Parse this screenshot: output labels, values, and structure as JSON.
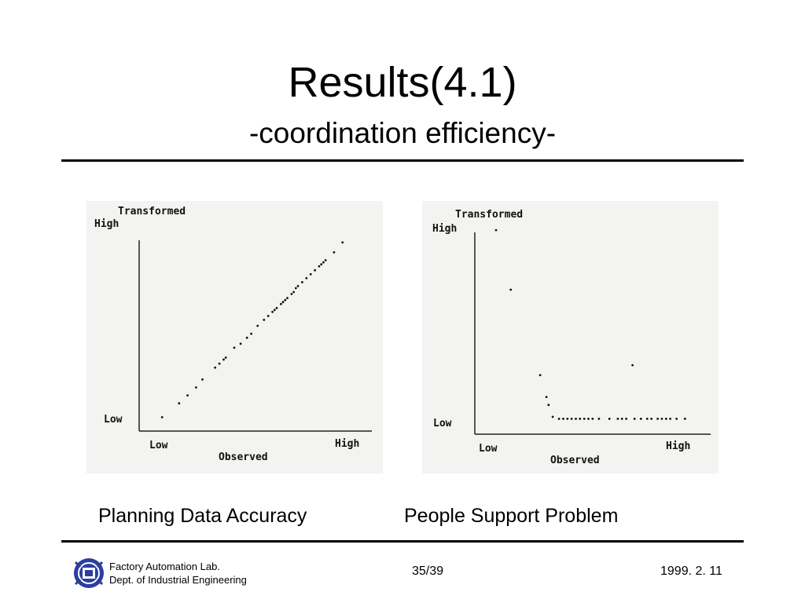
{
  "slide": {
    "title": "Results(4.1)",
    "subtitle": "-coordination efficiency-"
  },
  "figures": [
    {
      "caption": "Planning Data Accuracy",
      "y_axis_title": "Transformed",
      "y_high": "High",
      "y_low": "Low",
      "x_low": "Low",
      "x_high": "High",
      "x_axis_title": "Observed"
    },
    {
      "caption": "People Support Problem",
      "y_axis_title": "Transformed",
      "y_high": "High",
      "y_low": "Low",
      "x_low": "Low",
      "x_high": "High",
      "x_axis_title": "Observed"
    }
  ],
  "chart_data": [
    {
      "type": "scatter",
      "xlabel": "Observed",
      "ylabel": "Transformed",
      "xlim": [
        0,
        1
      ],
      "ylim": [
        0,
        1
      ],
      "points": [
        [
          0.06,
          0.03
        ],
        [
          0.14,
          0.1
        ],
        [
          0.18,
          0.14
        ],
        [
          0.22,
          0.18
        ],
        [
          0.25,
          0.22
        ],
        [
          0.31,
          0.28
        ],
        [
          0.33,
          0.3
        ],
        [
          0.35,
          0.32
        ],
        [
          0.36,
          0.33
        ],
        [
          0.4,
          0.38
        ],
        [
          0.43,
          0.4
        ],
        [
          0.46,
          0.43
        ],
        [
          0.48,
          0.45
        ],
        [
          0.51,
          0.49
        ],
        [
          0.54,
          0.52
        ],
        [
          0.56,
          0.54
        ],
        [
          0.58,
          0.56
        ],
        [
          0.59,
          0.57
        ],
        [
          0.6,
          0.58
        ],
        [
          0.62,
          0.6
        ],
        [
          0.63,
          0.61
        ],
        [
          0.64,
          0.62
        ],
        [
          0.65,
          0.63
        ],
        [
          0.67,
          0.65
        ],
        [
          0.68,
          0.66
        ],
        [
          0.69,
          0.68
        ],
        [
          0.7,
          0.69
        ],
        [
          0.72,
          0.71
        ],
        [
          0.74,
          0.73
        ],
        [
          0.76,
          0.75
        ],
        [
          0.78,
          0.77
        ],
        [
          0.8,
          0.79
        ],
        [
          0.81,
          0.8
        ],
        [
          0.82,
          0.81
        ],
        [
          0.83,
          0.82
        ],
        [
          0.87,
          0.86
        ],
        [
          0.91,
          0.91
        ]
      ]
    },
    {
      "type": "scatter",
      "xlabel": "Observed",
      "ylabel": "Transformed",
      "xlim": [
        0,
        1
      ],
      "ylim": [
        0,
        1
      ],
      "points": [
        [
          0.06,
          0.98
        ],
        [
          0.13,
          0.68
        ],
        [
          0.27,
          0.25
        ],
        [
          0.3,
          0.14
        ],
        [
          0.31,
          0.1
        ],
        [
          0.33,
          0.04
        ],
        [
          0.36,
          0.03
        ],
        [
          0.38,
          0.03
        ],
        [
          0.4,
          0.03
        ],
        [
          0.42,
          0.03
        ],
        [
          0.44,
          0.03
        ],
        [
          0.46,
          0.03
        ],
        [
          0.48,
          0.03
        ],
        [
          0.5,
          0.03
        ],
        [
          0.52,
          0.03
        ],
        [
          0.55,
          0.03
        ],
        [
          0.6,
          0.03
        ],
        [
          0.64,
          0.03
        ],
        [
          0.66,
          0.03
        ],
        [
          0.68,
          0.03
        ],
        [
          0.72,
          0.03
        ],
        [
          0.75,
          0.03
        ],
        [
          0.78,
          0.03
        ],
        [
          0.8,
          0.03
        ],
        [
          0.83,
          0.03
        ],
        [
          0.85,
          0.03
        ],
        [
          0.87,
          0.03
        ],
        [
          0.89,
          0.03
        ],
        [
          0.92,
          0.03
        ],
        [
          0.96,
          0.03
        ],
        [
          0.71,
          0.3
        ]
      ]
    }
  ],
  "footer": {
    "lab": "Factory Automation Lab.",
    "dept": "Dept. of Industrial Engineering",
    "page": "35/39",
    "date": "1999. 2. 11",
    "logo_icon": "university-emblem-icon",
    "logo_color": "#2b3fa0"
  }
}
